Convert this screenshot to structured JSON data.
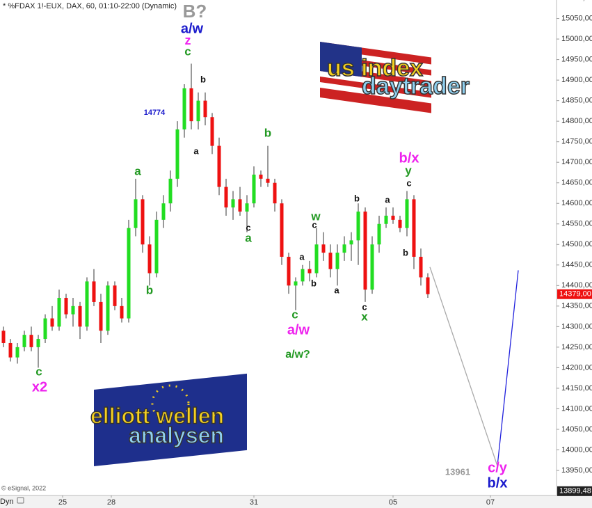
{
  "chart_data": {
    "type": "candlestick",
    "title": "* %FDAX 1!-EUX, DAX, 60, 01:10-22:00 (Dynamic)",
    "credit": "© eSignal, 2022",
    "mode_label": "Dyn",
    "up_color": "#22dd22",
    "down_color": "#ee1111",
    "candles": [
      [
        14290,
        14300,
        14250,
        14260
      ],
      [
        14260,
        14270,
        14215,
        14225
      ],
      [
        14225,
        14260,
        14210,
        14250
      ],
      [
        14250,
        14290,
        14240,
        14280
      ],
      [
        14280,
        14300,
        14240,
        14250
      ],
      [
        14250,
        14280,
        14200,
        14270
      ],
      [
        14270,
        14330,
        14260,
        14320
      ],
      [
        14320,
        14350,
        14290,
        14300
      ],
      [
        14300,
        14390,
        14290,
        14370
      ],
      [
        14370,
        14380,
        14320,
        14330
      ],
      [
        14330,
        14370,
        14300,
        14350
      ],
      [
        14350,
        14360,
        14270,
        14300
      ],
      [
        14300,
        14420,
        14290,
        14410
      ],
      [
        14410,
        14440,
        14350,
        14360
      ],
      [
        14360,
        14380,
        14260,
        14290
      ],
      [
        14290,
        14410,
        14280,
        14400
      ],
      [
        14400,
        14410,
        14340,
        14350
      ],
      [
        14350,
        14370,
        14310,
        14320
      ],
      [
        14320,
        14560,
        14310,
        14540
      ],
      [
        14540,
        14660,
        14520,
        14610
      ],
      [
        14610,
        14620,
        14480,
        14500
      ],
      [
        14500,
        14520,
        14400,
        14430
      ],
      [
        14430,
        14580,
        14420,
        14560
      ],
      [
        14560,
        14620,
        14540,
        14600
      ],
      [
        14600,
        14680,
        14580,
        14660
      ],
      [
        14660,
        14800,
        14640,
        14780
      ],
      [
        14780,
        14890,
        14760,
        14880
      ],
      [
        14880,
        14940,
        14780,
        14800
      ],
      [
        14800,
        14870,
        14780,
        14850
      ],
      [
        14850,
        14870,
        14790,
        14810
      ],
      [
        14810,
        14820,
        14720,
        14740
      ],
      [
        14740,
        14760,
        14620,
        14640
      ],
      [
        14640,
        14660,
        14570,
        14590
      ],
      [
        14590,
        14630,
        14560,
        14610
      ],
      [
        14610,
        14640,
        14570,
        14580
      ],
      [
        14580,
        14620,
        14530,
        14600
      ],
      [
        14600,
        14690,
        14590,
        14670
      ],
      [
        14670,
        14680,
        14640,
        14660
      ],
      [
        14660,
        14740,
        14640,
        14650
      ],
      [
        14650,
        14660,
        14580,
        14600
      ],
      [
        14600,
        14610,
        14450,
        14470
      ],
      [
        14470,
        14480,
        14380,
        14400
      ],
      [
        14400,
        14420,
        14340,
        14410
      ],
      [
        14410,
        14450,
        14400,
        14440
      ],
      [
        14440,
        14460,
        14410,
        14430
      ],
      [
        14430,
        14540,
        14420,
        14500
      ],
      [
        14500,
        14530,
        14460,
        14480
      ],
      [
        14480,
        14500,
        14420,
        14440
      ],
      [
        14440,
        14500,
        14400,
        14480
      ],
      [
        14480,
        14520,
        14460,
        14500
      ],
      [
        14500,
        14530,
        14460,
        14510
      ],
      [
        14510,
        14600,
        14450,
        14580
      ],
      [
        14580,
        14590,
        14360,
        14390
      ],
      [
        14390,
        14520,
        14380,
        14500
      ],
      [
        14500,
        14570,
        14480,
        14550
      ],
      [
        14550,
        14590,
        14540,
        14570
      ],
      [
        14570,
        14590,
        14550,
        14560
      ],
      [
        14560,
        14570,
        14530,
        14540
      ],
      [
        14540,
        14630,
        14520,
        14610
      ],
      [
        14610,
        14620,
        14440,
        14470
      ],
      [
        14470,
        14490,
        14400,
        14420
      ],
      [
        14420,
        14430,
        14370,
        14379
      ]
    ],
    "projection": {
      "x": [
        61.3,
        71,
        74
      ],
      "values": [
        14445,
        13961,
        14437
      ],
      "colors": [
        "#aaaaaa",
        "#2222dd"
      ]
    },
    "xlim": [
      -0.5,
      79.5
    ],
    "xticks": [
      {
        "value": 8.5,
        "label": "25"
      },
      {
        "value": 15.5,
        "label": "28"
      },
      {
        "value": 36,
        "label": "31"
      },
      {
        "value": 56,
        "label": "05"
      },
      {
        "value": 70,
        "label": "07"
      }
    ],
    "ylim": [
      13889,
      15095
    ],
    "yticks": [
      {
        "value": 13950,
        "label": "13950,00"
      },
      {
        "value": 14000,
        "label": "14000,00"
      },
      {
        "value": 14050,
        "label": "14050,00"
      },
      {
        "value": 14100,
        "label": "14100,00"
      },
      {
        "value": 14150,
        "label": "14150,00"
      },
      {
        "value": 14200,
        "label": "14200,00"
      },
      {
        "value": 14250,
        "label": "14250,00"
      },
      {
        "value": 14300,
        "label": "14300,00"
      },
      {
        "value": 14350,
        "label": "14350,00"
      },
      {
        "value": 14400,
        "label": "14400,00"
      },
      {
        "value": 14450,
        "label": "14450,00"
      },
      {
        "value": 14500,
        "label": "14500,00"
      },
      {
        "value": 14550,
        "label": "14550,00"
      },
      {
        "value": 14600,
        "label": "14600,00"
      },
      {
        "value": 14650,
        "label": "14650,00"
      },
      {
        "value": 14700,
        "label": "14700,00"
      },
      {
        "value": 14750,
        "label": "14750,00"
      },
      {
        "value": 14800,
        "label": "14800,00"
      },
      {
        "value": 14850,
        "label": "14850,00"
      },
      {
        "value": 14900,
        "label": "14900,00"
      },
      {
        "value": 14950,
        "label": "14950,00"
      },
      {
        "value": 15000,
        "label": "15000,00"
      },
      {
        "value": 15050,
        "label": "15050,00"
      },
      {
        "value": 15100,
        "label": "15100,00"
      }
    ],
    "price_markers": [
      {
        "value": 14379,
        "label": "14379,00",
        "color": "#ee1111"
      },
      {
        "value": 13899.48,
        "label": "13899,48",
        "color": "#222222"
      }
    ],
    "annotations": [
      {
        "text": "B?",
        "color": "#999999"
      },
      {
        "text": "a/w",
        "color": "#1a1acc"
      },
      {
        "text": "z",
        "color": "#ee22ee"
      },
      {
        "text": "c",
        "color": "#229922"
      },
      {
        "text": "b",
        "color": "#111111"
      },
      {
        "text": "14774",
        "color": "#1a1acc"
      },
      {
        "text": "a",
        "color": "#111111"
      },
      {
        "text": "b",
        "color": "#229922"
      },
      {
        "text": "a",
        "color": "#229922"
      },
      {
        "text": "b",
        "color": "#229922"
      },
      {
        "text": "c",
        "color": "#111111"
      },
      {
        "text": "a",
        "color": "#229922"
      },
      {
        "text": "w",
        "color": "#229922"
      },
      {
        "text": "c",
        "color": "#111111"
      },
      {
        "text": "a",
        "color": "#111111"
      },
      {
        "text": "b",
        "color": "#111111"
      },
      {
        "text": "a",
        "color": "#111111"
      },
      {
        "text": "c",
        "color": "#229922"
      },
      {
        "text": "a/w",
        "color": "#ee22ee"
      },
      {
        "text": "a/w?",
        "color": "#229922"
      },
      {
        "text": "b",
        "color": "#111111"
      },
      {
        "text": "a",
        "color": "#111111"
      },
      {
        "text": "c",
        "color": "#111111"
      },
      {
        "text": "x",
        "color": "#229922"
      },
      {
        "text": "b/x",
        "color": "#ee22ee"
      },
      {
        "text": "y",
        "color": "#229922"
      },
      {
        "text": "c",
        "color": "#111111"
      },
      {
        "text": "b",
        "color": "#111111"
      },
      {
        "text": "c",
        "color": "#229922"
      },
      {
        "text": "x2",
        "color": "#ee22ee"
      },
      {
        "text": "13961",
        "color": "#999999"
      },
      {
        "text": "c/y",
        "color": "#ee22ee"
      },
      {
        "text": "b/x",
        "color": "#1a1acc"
      }
    ],
    "logos": [
      [
        "us index",
        "daytrader"
      ],
      [
        "elliott wellen",
        "analysen"
      ]
    ]
  }
}
